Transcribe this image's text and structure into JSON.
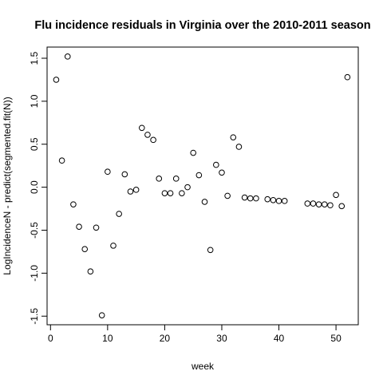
{
  "chart_data": {
    "type": "scatter",
    "title": "Flu incidence residuals in Virginia over the 2010-2011 season",
    "xlabel": "week",
    "ylabel": "LogIncidenceN - predict(segmented.fit(N))",
    "xlim": [
      -0.6,
      53.9
    ],
    "ylim": [
      -1.6,
      1.63
    ],
    "x_ticks": [
      0,
      10,
      20,
      30,
      40,
      50
    ],
    "x_tick_labels": [
      "0",
      "10",
      "20",
      "30",
      "40",
      "50"
    ],
    "y_ticks": [
      -1.5,
      -1.0,
      -0.5,
      0.0,
      0.5,
      1.0,
      1.5
    ],
    "y_tick_labels": [
      "-1.5",
      "-1.0",
      "-0.5",
      "0.0",
      "0.5",
      "1.0",
      "1.5"
    ],
    "grid": false,
    "marker": "open-circle",
    "points": [
      {
        "x": 1,
        "y": 1.25
      },
      {
        "x": 2,
        "y": 0.31
      },
      {
        "x": 3,
        "y": 1.52
      },
      {
        "x": 4,
        "y": -0.2
      },
      {
        "x": 5,
        "y": -0.46
      },
      {
        "x": 6,
        "y": -0.72
      },
      {
        "x": 7,
        "y": -0.98
      },
      {
        "x": 8,
        "y": -0.47
      },
      {
        "x": 9,
        "y": -1.49
      },
      {
        "x": 10,
        "y": 0.18
      },
      {
        "x": 11,
        "y": -0.68
      },
      {
        "x": 12,
        "y": -0.31
      },
      {
        "x": 13,
        "y": 0.15
      },
      {
        "x": 14,
        "y": -0.05
      },
      {
        "x": 15,
        "y": -0.03
      },
      {
        "x": 16,
        "y": 0.69
      },
      {
        "x": 17,
        "y": 0.61
      },
      {
        "x": 18,
        "y": 0.55
      },
      {
        "x": 19,
        "y": 0.1
      },
      {
        "x": 20,
        "y": -0.07
      },
      {
        "x": 21,
        "y": -0.07
      },
      {
        "x": 22,
        "y": 0.1
      },
      {
        "x": 23,
        "y": -0.07
      },
      {
        "x": 24,
        "y": 0.0
      },
      {
        "x": 25,
        "y": 0.4
      },
      {
        "x": 26,
        "y": 0.14
      },
      {
        "x": 27,
        "y": -0.17
      },
      {
        "x": 28,
        "y": -0.73
      },
      {
        "x": 29,
        "y": 0.26
      },
      {
        "x": 30,
        "y": 0.17
      },
      {
        "x": 31,
        "y": -0.1
      },
      {
        "x": 32,
        "y": 0.58
      },
      {
        "x": 33,
        "y": 0.47
      },
      {
        "x": 34,
        "y": -0.12
      },
      {
        "x": 35,
        "y": -0.13
      },
      {
        "x": 36,
        "y": -0.13
      },
      {
        "x": 38,
        "y": -0.14
      },
      {
        "x": 39,
        "y": -0.15
      },
      {
        "x": 40,
        "y": -0.16
      },
      {
        "x": 41,
        "y": -0.16
      },
      {
        "x": 45,
        "y": -0.19
      },
      {
        "x": 46,
        "y": -0.19
      },
      {
        "x": 47,
        "y": -0.2
      },
      {
        "x": 48,
        "y": -0.2
      },
      {
        "x": 49,
        "y": -0.21
      },
      {
        "x": 50,
        "y": -0.09
      },
      {
        "x": 51,
        "y": -0.22
      },
      {
        "x": 52,
        "y": 1.28
      }
    ]
  }
}
